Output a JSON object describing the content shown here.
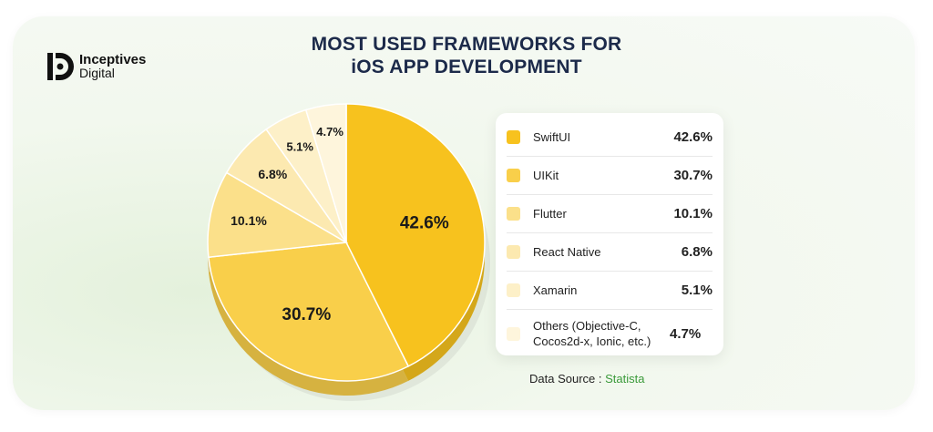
{
  "brand": {
    "line1": "Inceptives",
    "line2": "Digital"
  },
  "title": {
    "line1": "MOST USED FRAMEWORKS FOR",
    "line2": "iOS APP DEVELOPMENT"
  },
  "source": {
    "label": "Data Source :",
    "name": "Statista"
  },
  "chart_data": {
    "type": "pie",
    "title": "MOST USED FRAMEWORKS FOR iOS APP DEVELOPMENT",
    "categories": [
      "SwiftUI",
      "UIKit",
      "Flutter",
      "React Native",
      "Xamarin",
      "Others (Objective-C, Cocos2d-x, Ionic, etc.)"
    ],
    "values": [
      42.6,
      30.7,
      10.1,
      6.8,
      5.1,
      4.7
    ],
    "value_labels": [
      "42.6%",
      "30.7%",
      "10.1%",
      "6.8%",
      "5.1%",
      "4.7%"
    ],
    "colors": [
      "#f7c21e",
      "#f9cf4a",
      "#fbe08a",
      "#fce9b0",
      "#fdf0c8",
      "#fef5dc"
    ],
    "legend": "right"
  },
  "legend": {
    "items": [
      {
        "label": "SwiftUI",
        "value": "42.6%",
        "color": "#f7c21e"
      },
      {
        "label": "UIKit",
        "value": "30.7%",
        "color": "#f9cf4a"
      },
      {
        "label": "Flutter",
        "value": "10.1%",
        "color": "#fbe08a"
      },
      {
        "label": "React Native",
        "value": "6.8%",
        "color": "#fce9b0"
      },
      {
        "label": "Xamarin",
        "value": "5.1%",
        "color": "#fdf0c8"
      },
      {
        "label": "Others (Objective-C, Cocos2d-x, Ionic, etc.)",
        "value": "4.7%",
        "color": "#fef5dc"
      }
    ]
  }
}
